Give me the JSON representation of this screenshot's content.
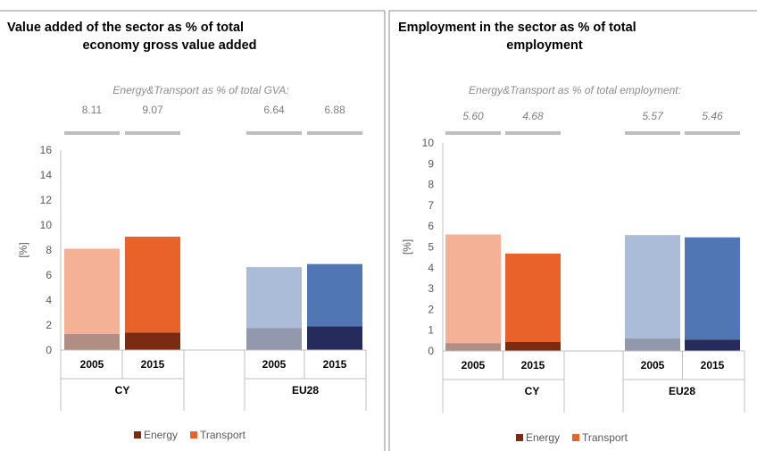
{
  "chart_data": [
    {
      "type": "bar",
      "stacked": true,
      "title": "Value added of the sector as % of total economy gross value added",
      "title_lines": [
        "Value added of the sector as % of total",
        "economy gross value added"
      ],
      "subtitle": "Energy&Transport as % of total GVA:",
      "ylabel": "[%]",
      "ylim": [
        0,
        16
      ],
      "yticks": [
        "0",
        "2",
        "4",
        "6",
        "8",
        "10",
        "12",
        "14",
        "16"
      ],
      "groups": [
        "CY",
        "EU28"
      ],
      "categories": [
        "2005",
        "2015",
        "2005",
        "2015"
      ],
      "totals": [
        "8.11",
        "9.07",
        "6.64",
        "6.88"
      ],
      "series": [
        {
          "name": "Energy",
          "values": [
            1.3,
            1.4,
            1.75,
            1.9
          ]
        },
        {
          "name": "Transport",
          "values": [
            6.81,
            7.67,
            4.89,
            4.98
          ]
        }
      ],
      "legend": [
        "Energy",
        "Transport"
      ],
      "legend_position": "bottom"
    },
    {
      "type": "bar",
      "stacked": true,
      "title": "Employment in the sector as % of total employment",
      "title_lines": [
        "Employment in the sector as % of total",
        "employment"
      ],
      "subtitle": "Energy&Transport as % of total employment:",
      "ylabel": "[%]",
      "ylim": [
        0,
        10
      ],
      "yticks": [
        "0",
        "1",
        "2",
        "3",
        "4",
        "5",
        "6",
        "7",
        "8",
        "9",
        "10"
      ],
      "groups": [
        "CY",
        "EU28"
      ],
      "categories": [
        "2005",
        "2015",
        "2005",
        "2015"
      ],
      "totals": [
        "5.60",
        "4.68",
        "5.57",
        "5.46"
      ],
      "series": [
        {
          "name": "Energy",
          "values": [
            0.38,
            0.43,
            0.6,
            0.55
          ]
        },
        {
          "name": "Transport",
          "values": [
            5.22,
            4.25,
            4.97,
            4.91
          ]
        }
      ],
      "legend": [
        "Energy",
        "Transport"
      ],
      "legend_position": "bottom"
    }
  ],
  "colors": {
    "cy_2005_energy": "#b08e83",
    "cy_2005_transport": "#f4b196",
    "cy_2015_energy": "#7a2c13",
    "cy_2015_transport": "#e8622a",
    "eu_2005_energy": "#9398ad",
    "eu_2005_transport": "#aabcd8",
    "eu_2015_energy": "#252b5a",
    "eu_2015_transport": "#5077b4",
    "legend_energy": "#7a2c13",
    "legend_transport": "#e8622a",
    "total_marker": "#bfbfbf",
    "axis": "#bfbfbf",
    "border": "#8c8c8c"
  }
}
